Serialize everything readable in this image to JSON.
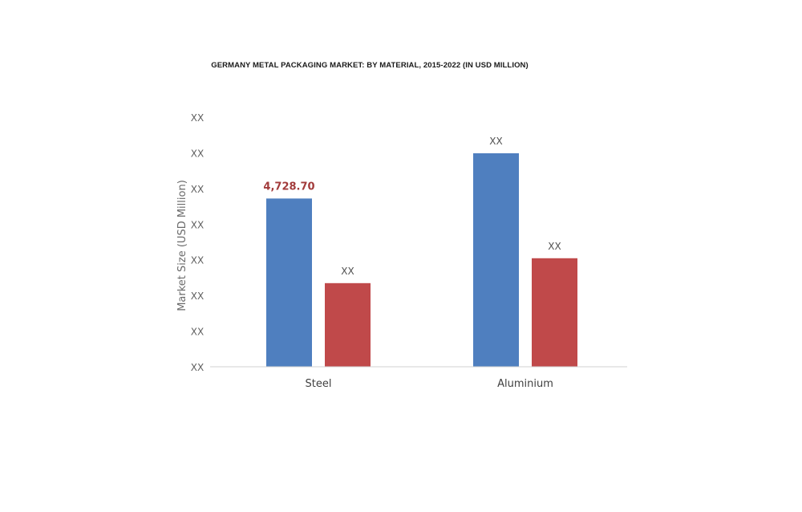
{
  "chart_data": {
    "type": "bar",
    "title": "GERMANY METAL PACKAGING MARKET: BY MATERIAL, 2015-2022 (IN USD MILLION)",
    "ylabel": "Market Size (USD Million)",
    "xlabel": "",
    "y_tick_labels": [
      "XX",
      "XX",
      "XX",
      "XX",
      "XX",
      "XX",
      "XX",
      "XX"
    ],
    "categories": [
      "Steel",
      "Aluminium"
    ],
    "ylim": [
      0,
      7000
    ],
    "series": [
      {
        "values": [
          4728.7,
          6000
        ],
        "labels": [
          "4,728.70",
          "XX"
        ],
        "color": "#4f7fbf"
      },
      {
        "values": [
          2350,
          3050
        ],
        "labels": [
          "XX",
          "XX"
        ],
        "color": "#c0494a"
      }
    ],
    "label_colors": {
      "highlight": "#a23b3b",
      "default": "#505050"
    },
    "grid": false,
    "legend": "none"
  }
}
